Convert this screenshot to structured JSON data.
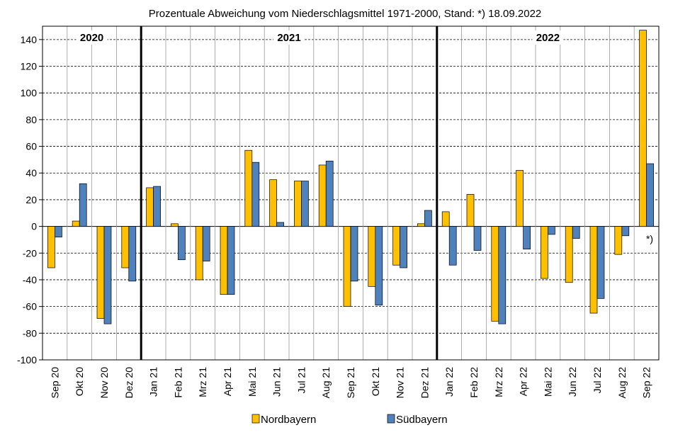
{
  "chart_data": {
    "type": "bar",
    "title": "Prozentuale Abweichung vom Niederschlagsmittel 1971-2000, Stand: *) 18.09.2022",
    "categories": [
      "Sep 20",
      "Okt 20",
      "Nov 20",
      "Dez 20",
      "Jan 21",
      "Feb 21",
      "Mrz 21",
      "Apr 21",
      "Mai 21",
      "Jun 21",
      "Jul 21",
      "Aug 21",
      "Sep 21",
      "Okt 21",
      "Nov 21",
      "Dez 21",
      "Jan 22",
      "Feb 22",
      "Mrz 22",
      "Apr 22",
      "Mai 22",
      "Jun 22",
      "Jul 22",
      "Aug 22",
      "Sep 22"
    ],
    "series": [
      {
        "name": "Nordbayern",
        "color": "#FFC000",
        "values": [
          -31,
          4,
          -69,
          -31,
          29,
          2,
          -40,
          -51,
          57,
          35,
          34,
          46,
          -60,
          -45,
          -29,
          2,
          11,
          24,
          -71,
          42,
          -39,
          -42,
          -65,
          -21,
          147
        ]
      },
      {
        "name": "Südbayern",
        "color": "#4F81BD",
        "values": [
          -8,
          32,
          -73,
          -41,
          30,
          -25,
          -26,
          -51,
          48,
          3,
          34,
          49,
          -41,
          -59,
          -31,
          12,
          -29,
          -18,
          -73,
          -17,
          -6,
          -9,
          -54,
          -7,
          47
        ]
      }
    ],
    "ylim": [
      -100,
      150
    ],
    "yticks": [
      -100,
      -80,
      -60,
      -40,
      -20,
      0,
      20,
      40,
      60,
      80,
      100,
      120,
      140
    ],
    "grid": true,
    "legend": "bottom",
    "years": [
      {
        "label": "2020",
        "start": 0,
        "end": 4
      },
      {
        "label": "2021",
        "start": 4,
        "end": 16
      },
      {
        "label": "2022",
        "start": 16,
        "end": 25
      }
    ],
    "annotation": "*)"
  }
}
